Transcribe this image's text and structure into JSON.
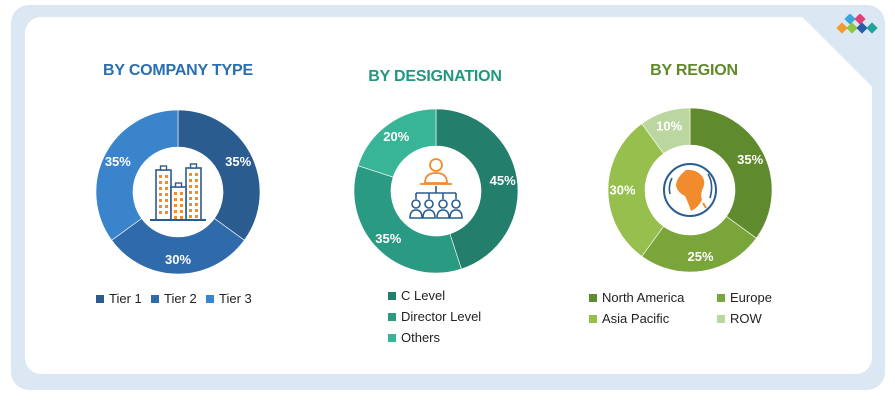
{
  "colors": {
    "frame": "#dbe7f3",
    "title_company": "#2a6fb0",
    "title_designation": "#20977f",
    "title_region": "#5e8a2a"
  },
  "chart_data": [
    {
      "type": "pie",
      "title": "BY COMPANY TYPE",
      "center_icon": "buildings-icon",
      "categories": [
        "Tier 1",
        "Tier 2",
        "Tier 3"
      ],
      "values": [
        35,
        30,
        35
      ],
      "labels": [
        "35%",
        "30%",
        "35%"
      ],
      "colors": [
        "#2a5c8f",
        "#2f6aab",
        "#3a84cc"
      ],
      "legend": "bottom"
    },
    {
      "type": "pie",
      "title": "BY DESIGNATION",
      "center_icon": "hierarchy-people-icon",
      "categories": [
        "C Level",
        "Director Level",
        "Others"
      ],
      "values": [
        45,
        35,
        20
      ],
      "labels": [
        "45%",
        "35%",
        "20%"
      ],
      "colors": [
        "#237f6b",
        "#2a9a82",
        "#37b596"
      ],
      "legend": "bottom"
    },
    {
      "type": "pie",
      "title": "BY REGION",
      "center_icon": "globe-icon",
      "categories": [
        "North America",
        "Europe",
        "Asia Pacific",
        "ROW"
      ],
      "values": [
        35,
        25,
        30,
        10
      ],
      "labels": [
        "35%",
        "25%",
        "30%",
        "10%"
      ],
      "colors": [
        "#5f8a2d",
        "#79a53a",
        "#97bf4e",
        "#bcd6a0"
      ],
      "legend": "bottom"
    }
  ]
}
